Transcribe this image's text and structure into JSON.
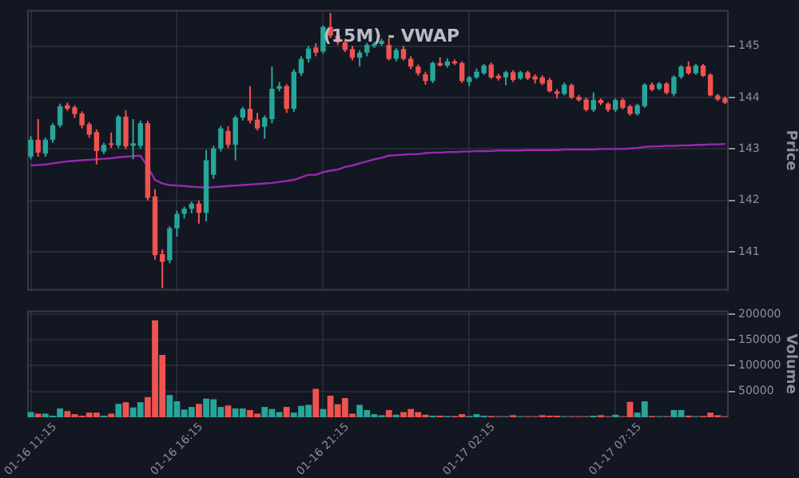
{
  "chart_data": [
    {
      "type": "candlestick",
      "title": "(15M) - VWAP",
      "ylabel": "Price",
      "categories": [
        null,
        null,
        null,
        null,
        null,
        null,
        null,
        null,
        null,
        null,
        null,
        null,
        null,
        null,
        null,
        null,
        null,
        null,
        null,
        null,
        null,
        null,
        null,
        null,
        null,
        null,
        null,
        null,
        null,
        null,
        null,
        null,
        null,
        null,
        null,
        null,
        null,
        null,
        null,
        null,
        null,
        null,
        null,
        null,
        null,
        null,
        null,
        null,
        null,
        null,
        null,
        null,
        null,
        null,
        null,
        null,
        null,
        null,
        null,
        null,
        null,
        null,
        null,
        null,
        null,
        null,
        null,
        null,
        null,
        null,
        null,
        null,
        null,
        null,
        null,
        null,
        null,
        null,
        null,
        null,
        null,
        null,
        null,
        null,
        null,
        null,
        null,
        null,
        null,
        null,
        null,
        null,
        null,
        null,
        null,
        null
      ],
      "ohlc": [
        [
          142.85,
          143.25,
          142.8,
          143.18
        ],
        [
          143.18,
          143.58,
          142.85,
          142.93
        ],
        [
          142.91,
          143.22,
          142.85,
          143.18
        ],
        [
          143.18,
          143.5,
          143.12,
          143.46
        ],
        [
          143.46,
          143.88,
          143.42,
          143.83
        ],
        [
          143.85,
          143.9,
          143.74,
          143.78
        ],
        [
          143.81,
          143.85,
          143.6,
          143.68
        ],
        [
          143.69,
          143.73,
          143.4,
          143.46
        ],
        [
          143.48,
          143.52,
          143.22,
          143.28
        ],
        [
          143.33,
          143.38,
          142.7,
          142.96
        ],
        [
          142.95,
          143.12,
          142.9,
          143.08
        ],
        [
          143.11,
          143.32,
          143.02,
          143.08
        ],
        [
          143.07,
          143.66,
          143.02,
          143.63
        ],
        [
          143.63,
          143.75,
          143.0,
          143.05
        ],
        [
          143.06,
          143.58,
          142.8,
          143.11
        ],
        [
          143.06,
          143.55,
          143.0,
          143.5
        ],
        [
          143.5,
          143.55,
          142.0,
          142.05
        ],
        [
          142.08,
          142.22,
          140.85,
          140.94
        ],
        [
          140.96,
          141.05,
          140.3,
          140.81
        ],
        [
          140.84,
          141.5,
          140.78,
          141.46
        ],
        [
          141.46,
          141.8,
          141.3,
          141.74
        ],
        [
          141.74,
          141.88,
          141.65,
          141.84
        ],
        [
          141.84,
          141.98,
          141.75,
          141.94
        ],
        [
          141.94,
          142.0,
          141.55,
          141.76
        ],
        [
          141.76,
          142.98,
          141.6,
          142.78
        ],
        [
          142.5,
          143.06,
          142.42,
          143.01
        ],
        [
          143.01,
          143.45,
          142.95,
          143.4
        ],
        [
          143.35,
          143.44,
          143.02,
          143.08
        ],
        [
          143.08,
          143.65,
          142.78,
          143.61
        ],
        [
          143.61,
          143.82,
          143.55,
          143.78
        ],
        [
          143.78,
          144.22,
          143.5,
          143.55
        ],
        [
          143.57,
          143.7,
          143.36,
          143.4
        ],
        [
          143.43,
          143.65,
          143.2,
          143.61
        ],
        [
          143.58,
          144.6,
          143.5,
          144.17
        ],
        [
          144.17,
          144.3,
          144.12,
          144.22
        ],
        [
          144.22,
          144.26,
          143.7,
          143.78
        ],
        [
          143.78,
          144.55,
          143.72,
          144.5
        ],
        [
          144.47,
          144.8,
          144.42,
          144.75
        ],
        [
          144.75,
          145.0,
          144.68,
          144.95
        ],
        [
          144.97,
          145.05,
          144.8,
          144.87
        ],
        [
          144.89,
          145.4,
          144.85,
          145.37
        ],
        [
          145.37,
          145.64,
          145.15,
          145.2
        ],
        [
          145.2,
          145.28,
          145.02,
          145.07
        ],
        [
          145.07,
          145.12,
          144.88,
          144.92
        ],
        [
          144.94,
          145.0,
          144.72,
          144.77
        ],
        [
          144.77,
          144.92,
          144.6,
          144.87
        ],
        [
          144.87,
          145.06,
          144.8,
          145.02
        ],
        [
          145.0,
          145.08,
          144.96,
          145.04
        ],
        [
          145.04,
          145.14,
          145.0,
          145.1
        ],
        [
          145.02,
          145.15,
          144.72,
          144.75
        ],
        [
          144.75,
          144.96,
          144.7,
          144.92
        ],
        [
          144.94,
          145.0,
          144.72,
          144.75
        ],
        [
          144.75,
          144.8,
          144.55,
          144.6
        ],
        [
          144.6,
          144.64,
          144.42,
          144.47
        ],
        [
          144.45,
          144.5,
          144.25,
          144.32
        ],
        [
          144.32,
          144.7,
          144.28,
          144.67
        ],
        [
          144.67,
          144.78,
          144.6,
          144.62
        ],
        [
          144.62,
          144.76,
          144.58,
          144.7
        ],
        [
          144.7,
          144.74,
          144.63,
          144.66
        ],
        [
          144.67,
          144.7,
          144.28,
          144.32
        ],
        [
          144.3,
          144.42,
          144.22,
          144.39
        ],
        [
          144.39,
          144.56,
          144.36,
          144.5
        ],
        [
          144.47,
          144.65,
          144.44,
          144.62
        ],
        [
          144.64,
          144.68,
          144.36,
          144.39
        ],
        [
          144.42,
          144.46,
          144.33,
          144.37
        ],
        [
          144.39,
          144.52,
          144.24,
          144.49
        ],
        [
          144.49,
          144.53,
          144.3,
          144.34
        ],
        [
          144.37,
          144.52,
          144.34,
          144.49
        ],
        [
          144.49,
          144.52,
          144.34,
          144.37
        ],
        [
          144.41,
          144.45,
          144.27,
          144.35
        ],
        [
          144.39,
          144.43,
          144.24,
          144.27
        ],
        [
          144.34,
          144.38,
          144.1,
          144.12
        ],
        [
          144.12,
          144.16,
          143.98,
          144.07
        ],
        [
          144.07,
          144.29,
          144.04,
          144.25
        ],
        [
          144.24,
          144.27,
          143.97,
          144.0
        ],
        [
          144.01,
          144.05,
          143.92,
          143.95
        ],
        [
          143.96,
          144.0,
          143.73,
          143.76
        ],
        [
          143.76,
          144.1,
          143.72,
          143.95
        ],
        [
          143.95,
          143.98,
          143.85,
          143.89
        ],
        [
          143.88,
          143.91,
          143.72,
          143.76
        ],
        [
          143.76,
          143.98,
          143.72,
          143.95
        ],
        [
          143.95,
          143.99,
          143.77,
          143.8
        ],
        [
          143.83,
          143.86,
          143.65,
          143.68
        ],
        [
          143.68,
          143.88,
          143.65,
          143.85
        ],
        [
          143.83,
          144.28,
          143.8,
          144.25
        ],
        [
          144.25,
          144.29,
          144.12,
          144.15
        ],
        [
          144.17,
          144.3,
          144.14,
          144.27
        ],
        [
          144.27,
          144.3,
          144.06,
          144.09
        ],
        [
          144.07,
          144.43,
          144.02,
          144.4
        ],
        [
          144.4,
          144.63,
          144.36,
          144.6
        ],
        [
          144.6,
          144.7,
          144.44,
          144.47
        ],
        [
          144.47,
          144.65,
          144.44,
          144.62
        ],
        [
          144.62,
          144.65,
          144.4,
          144.42
        ],
        [
          144.44,
          144.47,
          144.02,
          144.04
        ],
        [
          144.04,
          144.07,
          143.93,
          143.96
        ],
        [
          143.99,
          144.02,
          143.87,
          143.9
        ]
      ],
      "colors": [
        "#26a69a",
        "#ef5350",
        "#26a69a",
        "#26a69a",
        "#26a69a",
        "#ef5350",
        "#ef5350",
        "#ef5350",
        "#ef5350",
        "#ef5350",
        "#26a69a",
        "#ef5350",
        "#26a69a",
        "#ef5350",
        "#26a69a",
        "#26a69a",
        "#ef5350",
        "#ef5350",
        "#ef5350",
        "#26a69a",
        "#26a69a",
        "#26a69a",
        "#26a69a",
        "#ef5350",
        "#26a69a",
        "#26a69a",
        "#26a69a",
        "#ef5350",
        "#26a69a",
        "#26a69a",
        "#ef5350",
        "#ef5350",
        "#26a69a",
        "#26a69a",
        "#26a69a",
        "#ef5350",
        "#26a69a",
        "#26a69a",
        "#26a69a",
        "#ef5350",
        "#26a69a",
        "#ef5350",
        "#ef5350",
        "#ef5350",
        "#ef5350",
        "#26a69a",
        "#26a69a",
        "#26a69a",
        "#26a69a",
        "#ef5350",
        "#26a69a",
        "#ef5350",
        "#ef5350",
        "#ef5350",
        "#ef5350",
        "#26a69a",
        "#ef5350",
        "#26a69a",
        "#ef5350",
        "#ef5350",
        "#26a69a",
        "#26a69a",
        "#26a69a",
        "#ef5350",
        "#ef5350",
        "#26a69a",
        "#ef5350",
        "#26a69a",
        "#ef5350",
        "#ef5350",
        "#ef5350",
        "#ef5350",
        "#ef5350",
        "#26a69a",
        "#ef5350",
        "#ef5350",
        "#ef5350",
        "#26a69a",
        "#ef5350",
        "#ef5350",
        "#26a69a",
        "#ef5350",
        "#ef5350",
        "#26a69a",
        "#26a69a",
        "#ef5350",
        "#26a69a",
        "#ef5350",
        "#26a69a",
        "#26a69a",
        "#ef5350",
        "#26a69a",
        "#ef5350",
        "#ef5350",
        "#ef5350",
        "#ef5350"
      ],
      "series": [
        {
          "type": "line",
          "color": "#9c27b0",
          "values": [
            142.68,
            142.69,
            142.7,
            142.72,
            142.74,
            142.76,
            142.77,
            142.78,
            142.79,
            142.8,
            142.81,
            142.82,
            142.84,
            142.85,
            142.86,
            142.87,
            142.65,
            142.4,
            142.33,
            142.3,
            142.29,
            142.28,
            142.27,
            142.26,
            142.25,
            142.26,
            142.27,
            142.28,
            142.29,
            142.3,
            142.31,
            142.32,
            142.33,
            142.34,
            142.36,
            142.38,
            142.4,
            142.45,
            142.5,
            142.5,
            142.55,
            142.58,
            142.6,
            142.65,
            142.68,
            142.72,
            142.76,
            142.8,
            142.83,
            142.87,
            142.88,
            142.89,
            142.9,
            142.9,
            142.92,
            142.93,
            142.93,
            142.94,
            142.94,
            142.95,
            142.95,
            142.96,
            142.96,
            142.96,
            142.97,
            142.97,
            142.97,
            142.97,
            142.98,
            142.98,
            142.98,
            142.98,
            142.98,
            142.99,
            142.99,
            142.99,
            142.99,
            142.99,
            143.0,
            143.0,
            143.0,
            143.0,
            143.01,
            143.02,
            143.04,
            143.05,
            143.05,
            143.06,
            143.06,
            143.07,
            143.07,
            143.08,
            143.08,
            143.09,
            143.09,
            143.1
          ]
        }
      ],
      "ylim": [
        140.25,
        145.7
      ],
      "yticks": [
        141,
        142,
        143,
        144,
        145
      ],
      "grid": true,
      "tick_labels": "y"
    },
    {
      "type": "bar",
      "ylabel": "Volume",
      "categories": [
        "01-16 11:15",
        null,
        null,
        null,
        null,
        null,
        null,
        null,
        null,
        null,
        null,
        null,
        null,
        null,
        null,
        null,
        null,
        null,
        null,
        null,
        "01-16 16:15",
        null,
        null,
        null,
        null,
        null,
        null,
        null,
        null,
        null,
        null,
        null,
        null,
        null,
        null,
        null,
        null,
        null,
        null,
        null,
        "01-16 21:15",
        null,
        null,
        null,
        null,
        null,
        null,
        null,
        null,
        null,
        null,
        null,
        null,
        null,
        null,
        null,
        null,
        null,
        null,
        null,
        "01-17 02:15",
        null,
        null,
        null,
        null,
        null,
        null,
        null,
        null,
        null,
        null,
        null,
        null,
        null,
        null,
        null,
        null,
        null,
        null,
        null,
        "01-17 07:15",
        null,
        null,
        null,
        null,
        null,
        null,
        null,
        null,
        null,
        null,
        null,
        null,
        null,
        null,
        null
      ],
      "values": [
        10000,
        7000,
        7000,
        3000,
        17000,
        12000,
        6000,
        3000,
        9000,
        9000,
        3000,
        7000,
        26000,
        29000,
        19000,
        29000,
        39000,
        188000,
        121000,
        43000,
        31000,
        15000,
        20000,
        26000,
        36000,
        35000,
        20000,
        23000,
        17000,
        17000,
        14000,
        7000,
        20000,
        16000,
        10000,
        20000,
        9000,
        22000,
        24000,
        55000,
        16000,
        42000,
        25000,
        37000,
        7000,
        24000,
        14000,
        6000,
        4000,
        14000,
        5000,
        10000,
        16000,
        10000,
        5000,
        3000,
        3000,
        2000,
        2000,
        6000,
        2000,
        6000,
        3000,
        2000,
        1000,
        1000,
        4000,
        1000,
        1000,
        1000,
        4000,
        3000,
        3000,
        1000,
        1000,
        1000,
        1000,
        3000,
        4000,
        1000,
        5000,
        1000,
        30000,
        9000,
        31000,
        2000,
        1000,
        1000,
        14000,
        14000,
        3000,
        1000,
        2000,
        9000,
        4000,
        1000
      ],
      "colors": [
        "#26a69a",
        "#ef5350",
        "#26a69a",
        "#26a69a",
        "#26a69a",
        "#ef5350",
        "#ef5350",
        "#ef5350",
        "#ef5350",
        "#ef5350",
        "#26a69a",
        "#ef5350",
        "#26a69a",
        "#ef5350",
        "#26a69a",
        "#26a69a",
        "#ef5350",
        "#ef5350",
        "#ef5350",
        "#26a69a",
        "#26a69a",
        "#26a69a",
        "#26a69a",
        "#ef5350",
        "#26a69a",
        "#26a69a",
        "#26a69a",
        "#ef5350",
        "#26a69a",
        "#26a69a",
        "#ef5350",
        "#ef5350",
        "#26a69a",
        "#26a69a",
        "#26a69a",
        "#ef5350",
        "#26a69a",
        "#26a69a",
        "#26a69a",
        "#ef5350",
        "#26a69a",
        "#ef5350",
        "#ef5350",
        "#ef5350",
        "#ef5350",
        "#26a69a",
        "#26a69a",
        "#26a69a",
        "#26a69a",
        "#ef5350",
        "#26a69a",
        "#ef5350",
        "#ef5350",
        "#ef5350",
        "#ef5350",
        "#26a69a",
        "#ef5350",
        "#26a69a",
        "#ef5350",
        "#ef5350",
        "#26a69a",
        "#26a69a",
        "#26a69a",
        "#ef5350",
        "#ef5350",
        "#26a69a",
        "#ef5350",
        "#26a69a",
        "#ef5350",
        "#ef5350",
        "#ef5350",
        "#ef5350",
        "#ef5350",
        "#26a69a",
        "#ef5350",
        "#ef5350",
        "#ef5350",
        "#26a69a",
        "#ef5350",
        "#ef5350",
        "#26a69a",
        "#ef5350",
        "#ef5350",
        "#26a69a",
        "#26a69a",
        "#ef5350",
        "#26a69a",
        "#ef5350",
        "#26a69a",
        "#26a69a",
        "#ef5350",
        "#26a69a",
        "#ef5350",
        "#ef5350",
        "#ef5350",
        "#ef5350"
      ],
      "ylim": [
        0,
        207000
      ],
      "yticks": [
        50000,
        100000,
        150000,
        200000
      ],
      "grid": true
    }
  ]
}
